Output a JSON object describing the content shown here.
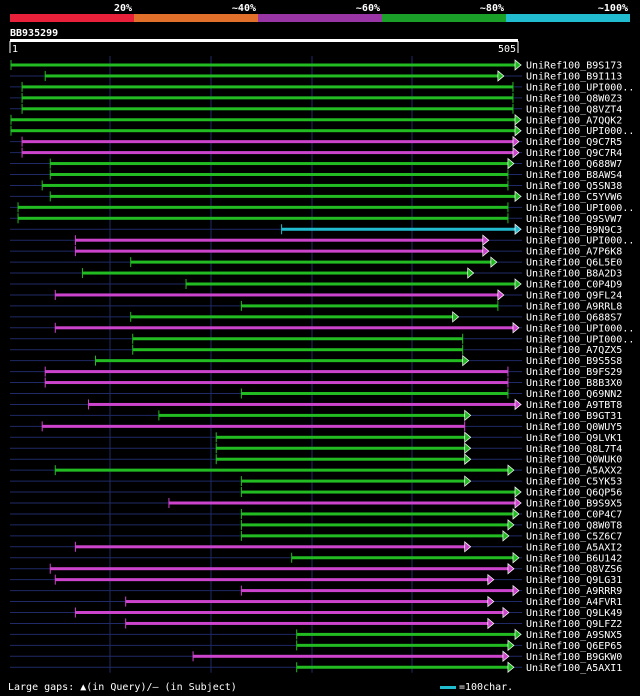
{
  "scale": {
    "segments": [
      {
        "label": "20%",
        "color": "#e8203a"
      },
      {
        "label": "~40%",
        "color": "#e0702a"
      },
      {
        "label": "~60%",
        "color": "#9a35a6"
      },
      {
        "label": "~80%",
        "color": "#1aa028"
      },
      {
        "label": "~100%",
        "color": "#22bcd0"
      }
    ]
  },
  "query": {
    "name": "BB935299",
    "start": "1",
    "end": "505",
    "length": 505
  },
  "colors": {
    "pink": "#cc44cc",
    "green": "#22bb22",
    "cyan": "#22bcd0",
    "grid": "#1f2a66"
  },
  "hits": [
    {
      "name": "UniRef100_B9S173",
      "s": 1,
      "e": 505,
      "c": "green",
      "arrow": true
    },
    {
      "name": "UniRef100_B9I113",
      "s": 35,
      "e": 485,
      "c": "green",
      "arrow": true
    },
    {
      "name": "UniRef100_UPI000..",
      "s": 12,
      "e": 500,
      "c": "green",
      "arrow": false
    },
    {
      "name": "UniRef100_Q8W0Z3",
      "s": 12,
      "e": 500,
      "c": "green",
      "arrow": false
    },
    {
      "name": "UniRef100_Q8VZT4",
      "s": 12,
      "e": 500,
      "c": "green",
      "arrow": false
    },
    {
      "name": "UniRef100_A7QQK2",
      "s": 1,
      "e": 550,
      "c": "green",
      "arrow": true
    },
    {
      "name": "UniRef100_UPI000..",
      "s": 1,
      "e": 550,
      "c": "green",
      "arrow": true
    },
    {
      "name": "UniRef100_Q9C7R5",
      "s": 12,
      "e": 500,
      "c": "pink",
      "arrow": true
    },
    {
      "name": "UniRef100_Q9C7R4",
      "s": 12,
      "e": 500,
      "c": "pink",
      "arrow": true
    },
    {
      "name": "UniRef100_Q688W7",
      "s": 40,
      "e": 495,
      "c": "green",
      "arrow": true
    },
    {
      "name": "UniRef100_B8AWS4",
      "s": 40,
      "e": 495,
      "c": "green",
      "arrow": false
    },
    {
      "name": "UniRef100_Q5SN38",
      "s": 32,
      "e": 495,
      "c": "green",
      "arrow": false
    },
    {
      "name": "UniRef100_C5YVW6",
      "s": 40,
      "e": 505,
      "c": "green",
      "arrow": true
    },
    {
      "name": "UniRef100_UPI000..",
      "s": 8,
      "e": 495,
      "c": "green",
      "arrow": false
    },
    {
      "name": "UniRef100_Q9SVW7",
      "s": 8,
      "e": 495,
      "c": "green",
      "arrow": false
    },
    {
      "name": "UniRef100_B9N9C3",
      "s": 270,
      "e": 505,
      "c": "cyan",
      "arrow": true
    },
    {
      "name": "UniRef100_UPI000..",
      "s": 65,
      "e": 470,
      "c": "pink",
      "arrow": true
    },
    {
      "name": "UniRef100_A7P6K8",
      "s": 65,
      "e": 470,
      "c": "pink",
      "arrow": true
    },
    {
      "name": "UniRef100_Q6L5E0",
      "s": 120,
      "e": 478,
      "c": "green",
      "arrow": true
    },
    {
      "name": "UniRef100_B8A2D3",
      "s": 72,
      "e": 455,
      "c": "green",
      "arrow": true
    },
    {
      "name": "UniRef100_C0P4D9",
      "s": 175,
      "e": 550,
      "c": "green",
      "arrow": true
    },
    {
      "name": "UniRef100_Q9FL24",
      "s": 45,
      "e": 485,
      "c": "pink",
      "arrow": true
    },
    {
      "name": "UniRef100_A9RRL8",
      "s": 230,
      "e": 485,
      "c": "green",
      "arrow": false
    },
    {
      "name": "UniRef100_Q688S7",
      "s": 120,
      "e": 440,
      "c": "green",
      "arrow": true
    },
    {
      "name": "UniRef100_UPI000..",
      "s": 45,
      "e": 500,
      "c": "pink",
      "arrow": true
    },
    {
      "name": "UniRef100_UPI000..",
      "s": 122,
      "e": 450,
      "c": "green",
      "arrow": false
    },
    {
      "name": "UniRef100_A7QZX5",
      "s": 122,
      "e": 450,
      "c": "green",
      "arrow": false
    },
    {
      "name": "UniRef100_B9S5S8",
      "s": 85,
      "e": 450,
      "c": "green",
      "arrow": true
    },
    {
      "name": "UniRef100_B9FS29",
      "s": 35,
      "e": 495,
      "c": "pink",
      "arrow": false
    },
    {
      "name": "UniRef100_B8B3X0",
      "s": 35,
      "e": 495,
      "c": "pink",
      "arrow": false
    },
    {
      "name": "UniRef100_Q69NN2",
      "s": 230,
      "e": 495,
      "c": "green",
      "arrow": false
    },
    {
      "name": "UniRef100_A9TBT8",
      "s": 78,
      "e": 525,
      "c": "pink",
      "arrow": true
    },
    {
      "name": "UniRef100_B9GT31",
      "s": 148,
      "e": 452,
      "c": "green",
      "arrow": true
    },
    {
      "name": "UniRef100_Q0WUY5",
      "s": 32,
      "e": 452,
      "c": "pink",
      "arrow": false
    },
    {
      "name": "UniRef100_Q9LVK1",
      "s": 205,
      "e": 452,
      "c": "green",
      "arrow": true
    },
    {
      "name": "UniRef100_Q8L7T4",
      "s": 205,
      "e": 452,
      "c": "green",
      "arrow": true
    },
    {
      "name": "UniRef100_Q0WUK0",
      "s": 205,
      "e": 452,
      "c": "green",
      "arrow": true
    },
    {
      "name": "UniRef100_A5AXX2",
      "s": 45,
      "e": 495,
      "c": "green",
      "arrow": true
    },
    {
      "name": "UniRef100_C5YK53",
      "s": 230,
      "e": 452,
      "c": "green",
      "arrow": true
    },
    {
      "name": "UniRef100_Q6QP56",
      "s": 230,
      "e": 505,
      "c": "green",
      "arrow": true
    },
    {
      "name": "UniRef100_B9S9X5",
      "s": 158,
      "e": 545,
      "c": "pink",
      "arrow": true
    },
    {
      "name": "UniRef100_C0P4C7",
      "s": 230,
      "e": 500,
      "c": "green",
      "arrow": true
    },
    {
      "name": "UniRef100_Q8W0T8",
      "s": 230,
      "e": 495,
      "c": "green",
      "arrow": true
    },
    {
      "name": "UniRef100_C5Z6C7",
      "s": 230,
      "e": 490,
      "c": "green",
      "arrow": true
    },
    {
      "name": "UniRef100_A5AXI2",
      "s": 65,
      "e": 452,
      "c": "pink",
      "arrow": true
    },
    {
      "name": "UniRef100_B6U142",
      "s": 280,
      "e": 500,
      "c": "green",
      "arrow": true
    },
    {
      "name": "UniRef100_Q8VZS6",
      "s": 40,
      "e": 495,
      "c": "pink",
      "arrow": true
    },
    {
      "name": "UniRef100_Q9LG31",
      "s": 45,
      "e": 475,
      "c": "pink",
      "arrow": true
    },
    {
      "name": "UniRef100_A9RRR9",
      "s": 230,
      "e": 500,
      "c": "pink",
      "arrow": true
    },
    {
      "name": "UniRef100_A4FVR1",
      "s": 115,
      "e": 475,
      "c": "pink",
      "arrow": true
    },
    {
      "name": "UniRef100_Q9LK49",
      "s": 65,
      "e": 490,
      "c": "pink",
      "arrow": true
    },
    {
      "name": "UniRef100_Q9LFZ2",
      "s": 115,
      "e": 475,
      "c": "pink",
      "arrow": true
    },
    {
      "name": "UniRef100_A9SNX5",
      "s": 285,
      "e": 505,
      "c": "green",
      "arrow": true
    },
    {
      "name": "UniRef100_Q6EP65",
      "s": 285,
      "e": 495,
      "c": "green",
      "arrow": true
    },
    {
      "name": "UniRef100_B9GKW0",
      "s": 182,
      "e": 490,
      "c": "pink",
      "arrow": true
    },
    {
      "name": "UniRef100_A5AXI1",
      "s": 285,
      "e": 495,
      "c": "green",
      "arrow": true
    }
  ],
  "footer": {
    "text": "Large gaps: ▲(in Query)/– (in Subject)",
    "legend": "=100char."
  }
}
